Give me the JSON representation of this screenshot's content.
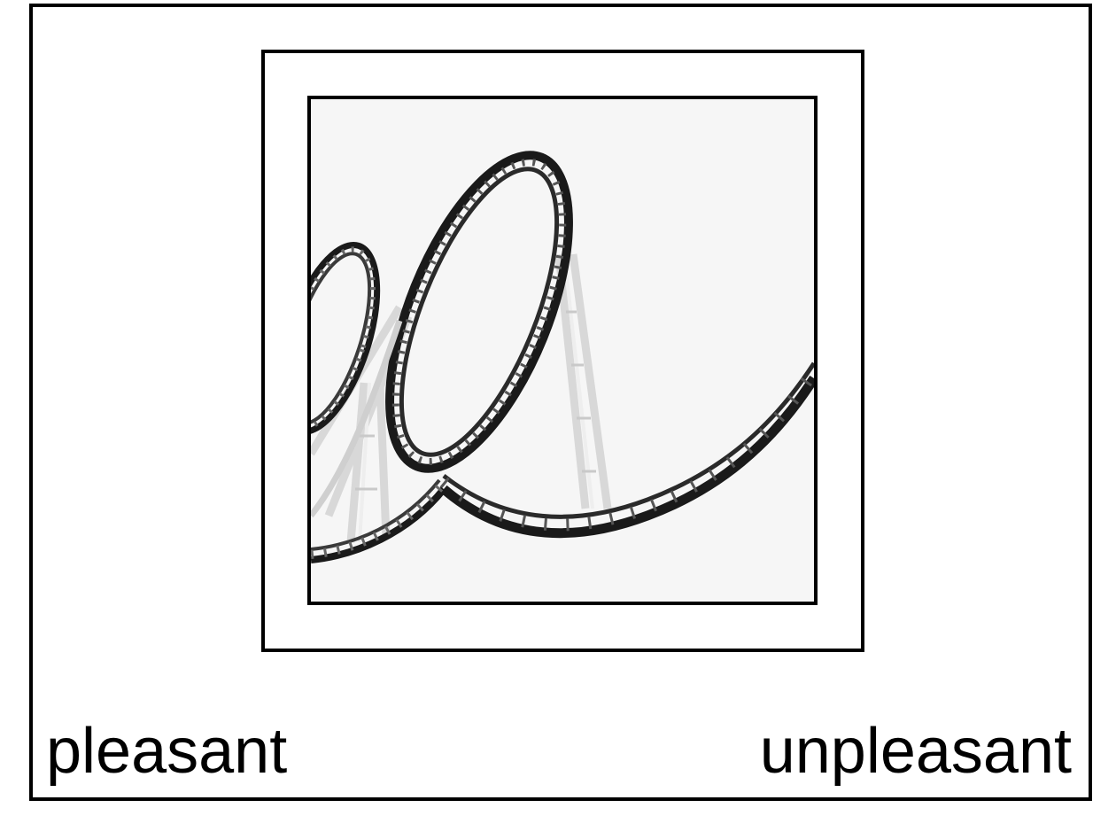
{
  "stimulus": {
    "image_description_icon": "roller-coaster-photo",
    "colors": {
      "background": "#ffffff",
      "border": "#000000",
      "photo_background": "#f6f6f6",
      "track_dark": "#1a1a1a",
      "support_light": "#dcdcdc"
    }
  },
  "rating_scale": {
    "left_label": "pleasant",
    "right_label": "unpleasant"
  }
}
